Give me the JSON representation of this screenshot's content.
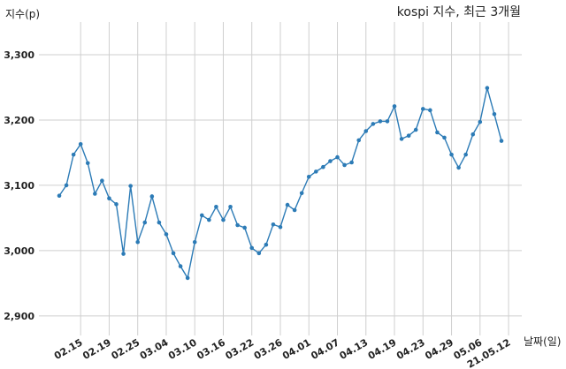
{
  "chart_data": {
    "type": "line",
    "title": "kospi 지수, 최근 3개월",
    "ylabel": "지수(p)",
    "xlabel": "날짜(일)",
    "ylim": [
      2870,
      3350
    ],
    "yticks": [
      2900,
      3000,
      3100,
      3200,
      3300
    ],
    "ytick_labels": [
      "2,900",
      "3,000",
      "3,100",
      "3,200",
      "3,300"
    ],
    "x_ticks": [
      {
        "label": "02.15",
        "index": 3
      },
      {
        "label": "02.19",
        "index": 7
      },
      {
        "label": "02.25",
        "index": 11
      },
      {
        "label": "03.04",
        "index": 15
      },
      {
        "label": "03.10",
        "index": 19
      },
      {
        "label": "03.16",
        "index": 23
      },
      {
        "label": "03.22",
        "index": 27
      },
      {
        "label": "03.26",
        "index": 31
      },
      {
        "label": "04.01",
        "index": 35
      },
      {
        "label": "04.07",
        "index": 39
      },
      {
        "label": "04.13",
        "index": 43
      },
      {
        "label": "04.19",
        "index": 47
      },
      {
        "label": "04.23",
        "index": 51
      },
      {
        "label": "04.29",
        "index": 55
      },
      {
        "label": "05.06",
        "index": 59
      },
      {
        "label": "21.05.12",
        "index": 63
      }
    ],
    "grid": true,
    "series": [
      {
        "color": "#2c7bb6",
        "values": [
          3084,
          3100,
          3147,
          3163,
          3134,
          3087,
          3107,
          3080,
          3071,
          2995,
          3099,
          3013,
          3043,
          3083,
          3043,
          3025,
          2996,
          2976,
          2958,
          3013,
          3054,
          3047,
          3067,
          3047,
          3067,
          3039,
          3035,
          3004,
          2996,
          3009,
          3040,
          3036,
          3070,
          3062,
          3088,
          3113,
          3121,
          3128,
          3137,
          3143,
          3131,
          3135,
          3169,
          3183,
          3194,
          3198,
          3198,
          3221,
          3171,
          3176,
          3185,
          3217,
          3215,
          3181,
          3173,
          3147,
          3127,
          3147,
          3178,
          3197,
          3249,
          3209,
          3168
        ]
      }
    ]
  }
}
